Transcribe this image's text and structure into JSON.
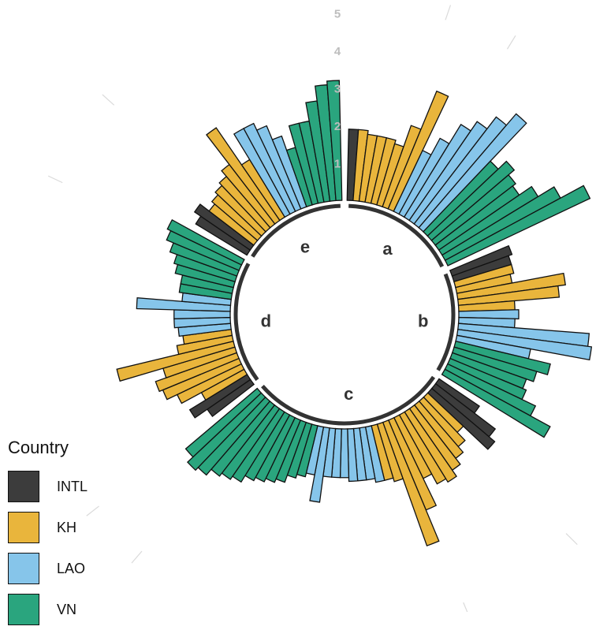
{
  "chart_data": {
    "type": "bar",
    "subtype": "circular-stacked-polar",
    "radial_ticks": [
      "1",
      "2",
      "3",
      "4",
      "5"
    ],
    "ylim": [
      0,
      5
    ],
    "groups": [
      "a",
      "b",
      "c",
      "d",
      "e"
    ],
    "legend": {
      "title": "Country",
      "position": "bottom-left",
      "items": [
        {
          "name": "INTL",
          "color": "#3c3c3c"
        },
        {
          "name": "KH",
          "color": "#e9b53c"
        },
        {
          "name": "LAO",
          "color": "#86c5ea"
        },
        {
          "name": "VN",
          "color": "#2aa57e"
        }
      ]
    },
    "bars": [
      {
        "group": "a",
        "country": "INTL",
        "value": 1.9
      },
      {
        "group": "a",
        "country": "KH",
        "value": 1.9
      },
      {
        "group": "a",
        "country": "KH",
        "value": 1.8
      },
      {
        "group": "a",
        "country": "KH",
        "value": 1.8
      },
      {
        "group": "a",
        "country": "KH",
        "value": 1.8
      },
      {
        "group": "a",
        "country": "KH",
        "value": 1.7
      },
      {
        "group": "a",
        "country": "KH",
        "value": 2.3
      },
      {
        "group": "a",
        "country": "KH",
        "value": 3.4
      },
      {
        "group": "a",
        "country": "LAO",
        "value": 1.8
      },
      {
        "group": "a",
        "country": "LAO",
        "value": 2.3
      },
      {
        "group": "a",
        "country": "LAO",
        "value": 2.9
      },
      {
        "group": "a",
        "country": "LAO",
        "value": 3.2
      },
      {
        "group": "a",
        "country": "LAO",
        "value": 3.6
      },
      {
        "group": "a",
        "country": "LAO",
        "value": 4.0
      },
      {
        "group": "a",
        "country": "VN",
        "value": 2.6
      },
      {
        "group": "a",
        "country": "VN",
        "value": 2.9
      },
      {
        "group": "a",
        "country": "VN",
        "value": 2.7
      },
      {
        "group": "a",
        "country": "VN",
        "value": 2.6
      },
      {
        "group": "a",
        "country": "VN",
        "value": 3.0
      },
      {
        "group": "a",
        "country": "VN",
        "value": 3.5
      },
      {
        "group": "a",
        "country": "VN",
        "value": 4.2
      },
      {
        "group": "b",
        "country": "INTL",
        "value": 1.7
      },
      {
        "group": "b",
        "country": "INTL",
        "value": 1.6
      },
      {
        "group": "b",
        "country": "KH",
        "value": 1.6
      },
      {
        "group": "b",
        "country": "KH",
        "value": 1.5
      },
      {
        "group": "b",
        "country": "KH",
        "value": 2.9
      },
      {
        "group": "b",
        "country": "KH",
        "value": 2.7
      },
      {
        "group": "b",
        "country": "KH",
        "value": 1.5
      },
      {
        "group": "b",
        "country": "LAO",
        "value": 1.6
      },
      {
        "group": "b",
        "country": "LAO",
        "value": 1.5
      },
      {
        "group": "b",
        "country": "LAO",
        "value": 3.5
      },
      {
        "group": "b",
        "country": "LAO",
        "value": 3.6
      },
      {
        "group": "b",
        "country": "LAO",
        "value": 2.0
      },
      {
        "group": "b",
        "country": "VN",
        "value": 2.6
      },
      {
        "group": "b",
        "country": "VN",
        "value": 2.3
      },
      {
        "group": "b",
        "country": "VN",
        "value": 2.1
      },
      {
        "group": "b",
        "country": "VN",
        "value": 2.2
      },
      {
        "group": "b",
        "country": "VN",
        "value": 2.6
      },
      {
        "group": "b",
        "country": "VN",
        "value": 3.2
      },
      {
        "group": "c",
        "country": "INTL",
        "value": 1.3
      },
      {
        "group": "c",
        "country": "INTL",
        "value": 2.0
      },
      {
        "group": "c",
        "country": "INTL",
        "value": 2.2
      },
      {
        "group": "c",
        "country": "KH",
        "value": 1.3
      },
      {
        "group": "c",
        "country": "KH",
        "value": 1.6
      },
      {
        "group": "c",
        "country": "KH",
        "value": 1.8
      },
      {
        "group": "c",
        "country": "KH",
        "value": 2.0
      },
      {
        "group": "c",
        "country": "KH",
        "value": 2.2
      },
      {
        "group": "c",
        "country": "KH",
        "value": 2.1
      },
      {
        "group": "c",
        "country": "KH",
        "value": 1.8
      },
      {
        "group": "c",
        "country": "KH",
        "value": 2.6
      },
      {
        "group": "c",
        "country": "KH",
        "value": 3.5
      },
      {
        "group": "c",
        "country": "KH",
        "value": 1.6
      },
      {
        "group": "c",
        "country": "KH",
        "value": 1.5
      },
      {
        "group": "c",
        "country": "LAO",
        "value": 1.5
      },
      {
        "group": "c",
        "country": "LAO",
        "value": 1.4
      },
      {
        "group": "c",
        "country": "LAO",
        "value": 1.4
      },
      {
        "group": "c",
        "country": "LAO",
        "value": 1.4
      },
      {
        "group": "c",
        "country": "LAO",
        "value": 1.3
      },
      {
        "group": "c",
        "country": "LAO",
        "value": 1.3
      },
      {
        "group": "c",
        "country": "LAO",
        "value": 1.3
      },
      {
        "group": "c",
        "country": "LAO",
        "value": 2.0
      },
      {
        "group": "c",
        "country": "LAO",
        "value": 1.3
      },
      {
        "group": "c",
        "country": "VN",
        "value": 1.4
      },
      {
        "group": "c",
        "country": "VN",
        "value": 1.5
      },
      {
        "group": "c",
        "country": "VN",
        "value": 1.7
      },
      {
        "group": "c",
        "country": "VN",
        "value": 1.8
      },
      {
        "group": "c",
        "country": "VN",
        "value": 1.9
      },
      {
        "group": "c",
        "country": "VN",
        "value": 2.0
      },
      {
        "group": "c",
        "country": "VN",
        "value": 2.2
      },
      {
        "group": "c",
        "country": "VN",
        "value": 2.3
      },
      {
        "group": "c",
        "country": "VN",
        "value": 2.4
      },
      {
        "group": "c",
        "country": "VN",
        "value": 2.6
      },
      {
        "group": "c",
        "country": "VN",
        "value": 2.7
      },
      {
        "group": "c",
        "country": "VN",
        "value": 2.5
      },
      {
        "group": "d",
        "country": "INTL",
        "value": 1.4
      },
      {
        "group": "d",
        "country": "INTL",
        "value": 1.8
      },
      {
        "group": "d",
        "country": "KH",
        "value": 1.3
      },
      {
        "group": "d",
        "country": "KH",
        "value": 1.9
      },
      {
        "group": "d",
        "country": "KH",
        "value": 2.2
      },
      {
        "group": "d",
        "country": "KH",
        "value": 2.3
      },
      {
        "group": "d",
        "country": "KH",
        "value": 2.0
      },
      {
        "group": "d",
        "country": "KH",
        "value": 3.2
      },
      {
        "group": "d",
        "country": "KH",
        "value": 1.5
      },
      {
        "group": "d",
        "country": "KH",
        "value": 1.3
      },
      {
        "group": "d",
        "country": "LAO",
        "value": 1.4
      },
      {
        "group": "d",
        "country": "LAO",
        "value": 1.5
      },
      {
        "group": "d",
        "country": "LAO",
        "value": 1.5
      },
      {
        "group": "d",
        "country": "LAO",
        "value": 2.5
      },
      {
        "group": "d",
        "country": "LAO",
        "value": 1.3
      },
      {
        "group": "d",
        "country": "VN",
        "value": 1.4
      },
      {
        "group": "d",
        "country": "VN",
        "value": 1.4
      },
      {
        "group": "d",
        "country": "VN",
        "value": 1.6
      },
      {
        "group": "d",
        "country": "VN",
        "value": 1.7
      },
      {
        "group": "d",
        "country": "VN",
        "value": 1.9
      },
      {
        "group": "d",
        "country": "VN",
        "value": 2.1
      },
      {
        "group": "d",
        "country": "VN",
        "value": 2.2
      },
      {
        "group": "e",
        "country": "INTL",
        "value": 1.6
      },
      {
        "group": "e",
        "country": "INTL",
        "value": 1.8
      },
      {
        "group": "e",
        "country": "KH",
        "value": 1.5
      },
      {
        "group": "e",
        "country": "KH",
        "value": 1.6
      },
      {
        "group": "e",
        "country": "KH",
        "value": 1.7
      },
      {
        "group": "e",
        "country": "KH",
        "value": 1.8
      },
      {
        "group": "e",
        "country": "KH",
        "value": 2.0
      },
      {
        "group": "e",
        "country": "KH",
        "value": 3.0
      },
      {
        "group": "e",
        "country": "KH",
        "value": 1.8
      },
      {
        "group": "e",
        "country": "LAO",
        "value": 2.6
      },
      {
        "group": "e",
        "country": "LAO",
        "value": 2.6
      },
      {
        "group": "e",
        "country": "LAO",
        "value": 2.4
      },
      {
        "group": "e",
        "country": "LAO",
        "value": 2.0
      },
      {
        "group": "e",
        "country": "VN",
        "value": 1.6
      },
      {
        "group": "e",
        "country": "VN",
        "value": 2.2
      },
      {
        "group": "e",
        "country": "VN",
        "value": 2.2
      },
      {
        "group": "e",
        "country": "VN",
        "value": 2.7
      },
      {
        "group": "e",
        "country": "VN",
        "value": 3.1
      },
      {
        "group": "e",
        "country": "VN",
        "value": 3.2
      }
    ]
  }
}
